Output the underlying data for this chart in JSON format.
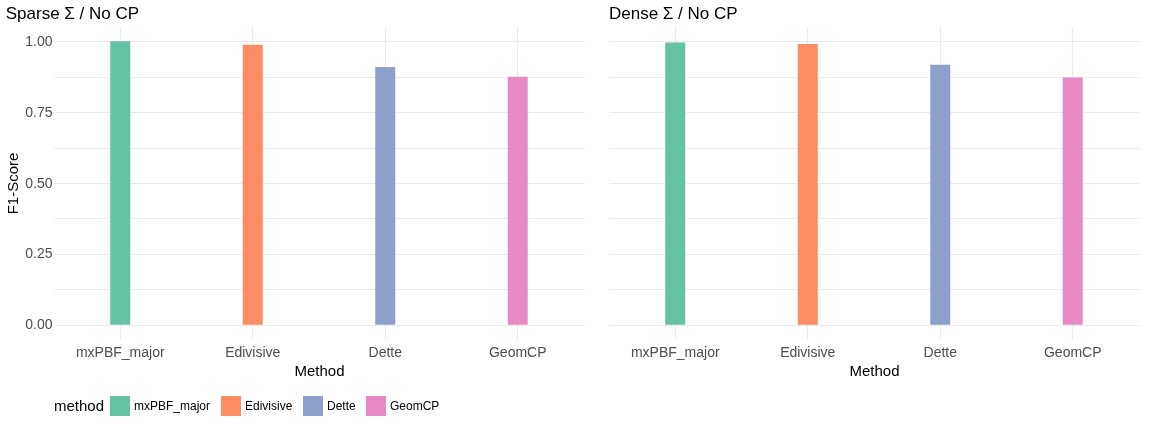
{
  "chart_data": [
    {
      "type": "bar",
      "title": "Sparse Σ  /  No CP",
      "xlabel": "Method",
      "ylabel": "F1-Score",
      "categories": [
        "mxPBF_major",
        "Edivisive",
        "Dette",
        "GeomCP"
      ],
      "series": [
        {
          "name": "mxPBF_major",
          "color": "#66c2a5",
          "values": [
            1.0,
            null,
            null,
            null
          ]
        },
        {
          "name": "Edivisive",
          "color": "#fc8d62",
          "values": [
            null,
            0.987,
            null,
            null
          ]
        },
        {
          "name": "Dette",
          "color": "#8da0cb",
          "values": [
            null,
            null,
            0.909,
            null
          ]
        },
        {
          "name": "GeomCP",
          "color": "#e78ac3",
          "values": [
            null,
            null,
            null,
            0.875
          ]
        }
      ],
      "ylim": [
        -0.05,
        1.05
      ],
      "yticks": [
        {
          "value": 0,
          "label": "0.00"
        },
        {
          "value": 0.125,
          "label": null
        },
        {
          "value": 0.25,
          "label": "0.25"
        },
        {
          "value": 0.375,
          "label": null
        },
        {
          "value": 0.5,
          "label": "0.50"
        },
        {
          "value": 0.625,
          "label": null
        },
        {
          "value": 0.75,
          "label": "0.75"
        },
        {
          "value": 0.875,
          "label": null
        },
        {
          "value": 1,
          "label": "1.00"
        }
      ],
      "grid": true,
      "legend": "bottom",
      "legend_title": "method"
    },
    {
      "type": "bar",
      "title": "Dense Σ  /  No CP",
      "xlabel": "Method",
      "categories": [
        "mxPBF_major",
        "Edivisive",
        "Dette",
        "GeomCP"
      ],
      "series": [
        {
          "name": "mxPBF_major",
          "color": "#66c2a5",
          "values": [
            0.995,
            null,
            null,
            null
          ]
        },
        {
          "name": "Edivisive",
          "color": "#fc8d62",
          "values": [
            null,
            0.99,
            null,
            null
          ]
        },
        {
          "name": "Dette",
          "color": "#8da0cb",
          "values": [
            null,
            null,
            0.917,
            null
          ]
        },
        {
          "name": "GeomCP",
          "color": "#e78ac3",
          "values": [
            null,
            null,
            null,
            0.872
          ]
        }
      ],
      "ylim": [
        -0.05,
        1.05
      ],
      "yticks": [
        0,
        0.125,
        0.25,
        0.375,
        0.5,
        0.625,
        0.75,
        0.875,
        1
      ],
      "grid": true,
      "tick_labels": "x"
    }
  ]
}
